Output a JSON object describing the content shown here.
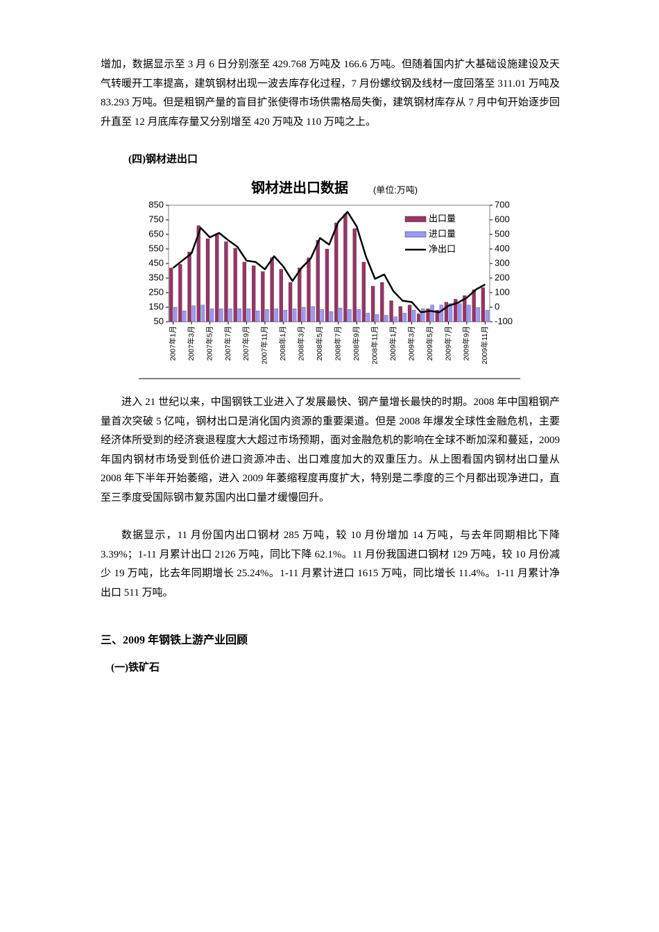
{
  "paragraphs": [
    "增加，数据显示至 3 月 6 日分别涨至 429.768 万吨及 166.6 万吨。但随着国内扩大基础设施建设及天气转暖开工率提高，建筑钢材出现一波去库存化过程，7 月份螺纹钢及线材一度回落至 311.01 万吨及 83.293 万吨。但是粗钢产量的盲目扩张使得市场供需格局失衡，建筑钢材库存从 7 月中旬开始逐步回升直至 12 月底库存量又分别增至 420 万吨及 110 万吨之上。",
    "进入 21 世纪以来，中国钢铁工业进入了发展最快、钢产量增长最快的时期。2008 年中国粗钢产量首次突破 5 亿吨，钢材出口是消化国内资源的重要渠道。但是 2008 年爆发全球性金融危机，主要经济体所受到的经济衰退程度大大超过市场预期，面对金融危机的影响在全球不断加深和蔓延，2009 年国内钢材市场受到低价进口资源冲击、出口难度加大的双重压力。从上图看国内钢材出口量从 2008 年下半年开始萎缩，进入 2009 年萎缩程度再度扩大，特别是二季度的三个月都出现净进口，直至三季度受国际钢市复苏国内出口量才缓慢回升。",
    "数据显示，11 月份国内出口钢材 285 万吨，较 10 月份增加 14 万吨，与去年同期相比下降 3.39%；1-11 月累计出口 2126 万吨，同比下降 62.1%。11 月份我国进口钢材 129 万吨，较 10 月份减少 19 万吨，比去年同期增长 25.24%。1-11 月累计进口 1615 万吨，同比增长 11.4%。1-11 月累计净出口 511 万吨。"
  ],
  "headings": [
    "(四)钢材进出口",
    "三、2009 年钢铁上游产业回顾",
    "(一)铁矿石"
  ],
  "chart_data": {
    "type": "bar",
    "title": "钢材进出口数据",
    "subtitle": "(单位:万吨)",
    "categories": [
      "2007年1月",
      null,
      "2007年3月",
      null,
      "2007年5月",
      null,
      "2007年7月",
      null,
      "2007年9月",
      null,
      "2007年11月",
      null,
      "2008年1月",
      null,
      "2008年3月",
      null,
      "2008年5月",
      null,
      "2008年7月",
      null,
      "2008年9月",
      null,
      "2008年11月",
      null,
      "2009年1月",
      null,
      "2009年3月",
      null,
      "2009年5月",
      null,
      "2009年7月",
      null,
      "2009年9月",
      null,
      "2009年11月"
    ],
    "series": [
      {
        "name": "出口量",
        "color": "#993366",
        "type": "bar",
        "values": [
          420,
          445,
          530,
          710,
          620,
          650,
          600,
          555,
          460,
          435,
          395,
          490,
          410,
          320,
          420,
          490,
          610,
          550,
          730,
          790,
          690,
          460,
          295,
          320,
          195,
          155,
          165,
          105,
          140,
          130,
          185,
          205,
          230,
          270,
          285
        ]
      },
      {
        "name": "进口量",
        "color": "#9999ff",
        "type": "bar",
        "values": [
          150,
          125,
          160,
          165,
          140,
          140,
          140,
          140,
          140,
          125,
          135,
          140,
          130,
          140,
          150,
          155,
          135,
          120,
          145,
          135,
          135,
          110,
          100,
          95,
          85,
          110,
          130,
          140,
          165,
          165,
          175,
          175,
          165,
          148,
          129
        ]
      },
      {
        "name": "净出口",
        "color": "#000000",
        "type": "line",
        "axis": "y2",
        "values": [
          270,
          320,
          370,
          545,
          480,
          510,
          460,
          415,
          320,
          310,
          260,
          350,
          280,
          180,
          270,
          335,
          475,
          430,
          585,
          655,
          555,
          350,
          195,
          225,
          110,
          45,
          35,
          -35,
          -25,
          -35,
          10,
          30,
          65,
          122,
          156
        ]
      }
    ],
    "ylim": [
      50,
      850
    ],
    "yticks": [
      50,
      150,
      250,
      350,
      450,
      550,
      650,
      750,
      850
    ],
    "y2lim": [
      -100,
      700
    ],
    "y2ticks": [
      -100,
      0,
      100,
      200,
      300,
      400,
      500,
      600,
      700
    ],
    "legend": "upper right"
  }
}
